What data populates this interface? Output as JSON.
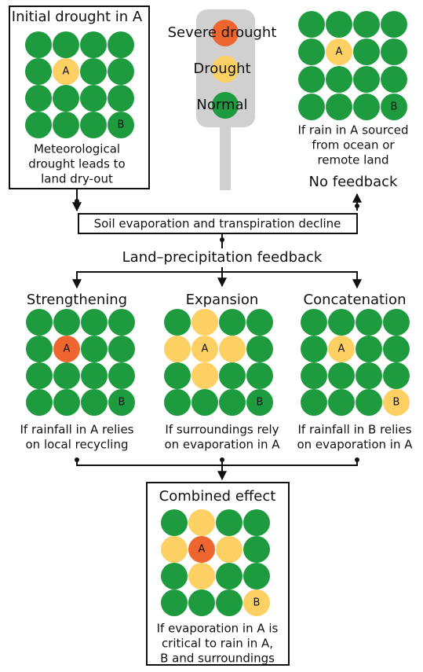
{
  "legend": [
    "Severe drought",
    "Drought",
    "Normal"
  ],
  "process": {
    "step": "Soil evaporation and transpiration decline",
    "feedback": "Land–precipitation feedback"
  },
  "panels": [
    {
      "title": "Initial drought in A",
      "caption": [
        "Meteorological",
        "drought leads to",
        "land dry-out"
      ],
      "marks": [
        "A",
        "B"
      ]
    },
    {
      "caption": [
        "If rain in A sourced",
        "from ocean or",
        "remote land"
      ],
      "note": "No feedback",
      "marks": [
        "A",
        "B"
      ]
    },
    {
      "title": "Strengthening",
      "caption": [
        "If rainfall in A relies",
        "on local recycling"
      ],
      "marks": [
        "A",
        "B"
      ]
    },
    {
      "title": "Expansion",
      "caption": [
        "If surroundings rely",
        "on evaporation in A"
      ],
      "marks": [
        "A",
        "B"
      ]
    },
    {
      "title": "Concatenation",
      "caption": [
        "If rainfall in B relies",
        "on evaporation in A"
      ],
      "marks": [
        "A",
        "B"
      ]
    },
    {
      "title": "Combined effect",
      "caption": [
        "If evaporation in A is",
        "critical to rain in A,",
        "B and surroundings"
      ],
      "marks": [
        "A",
        "B"
      ]
    }
  ]
}
